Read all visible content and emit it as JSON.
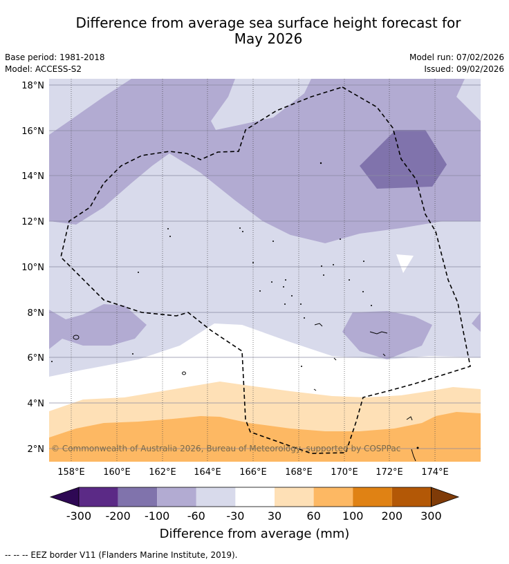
{
  "title_line1": "Difference from average sea surface height forecast for",
  "title_line2": "May 2026",
  "base_period": "Base period: 1981-2018",
  "model": "Model: ACCESS-S2",
  "model_run": "Model run: 07/02/2026",
  "issued": "Issued: 09/02/2026",
  "lat_labels": [
    "18°N",
    "16°N",
    "14°N",
    "12°N",
    "10°N",
    "8°N",
    "6°N",
    "4°N",
    "2°N"
  ],
  "lon_labels": [
    "158°E",
    "160°E",
    "162°E",
    "164°E",
    "166°E",
    "168°E",
    "170°E",
    "172°E",
    "174°E"
  ],
  "copyright": "© Commonwealth of Australia 2026, Bureau of Meteorology, supported by COSPPac",
  "colorbar": {
    "ticks": [
      "-300",
      "-200",
      "-100",
      "-60",
      "-30",
      "30",
      "60",
      "100",
      "200",
      "300"
    ],
    "colors": {
      "lt_m300": "#2e0854",
      "m300_m200": "#5b2a86",
      "m200_m100": "#8073ac",
      "m100_m60": "#b2abd2",
      "m60_m30": "#d8daeb",
      "m30_30": "#ffffff",
      "30_60": "#fee0b6",
      "60_100": "#fdb863",
      "100_200": "#e08214",
      "200_300": "#b35806",
      "gt_300": "#7f3b08"
    },
    "label": "Difference from average (mm)"
  },
  "footnote": "--  --  -- EEZ border V11 (Flanders Marine Institute, 2019)."
}
